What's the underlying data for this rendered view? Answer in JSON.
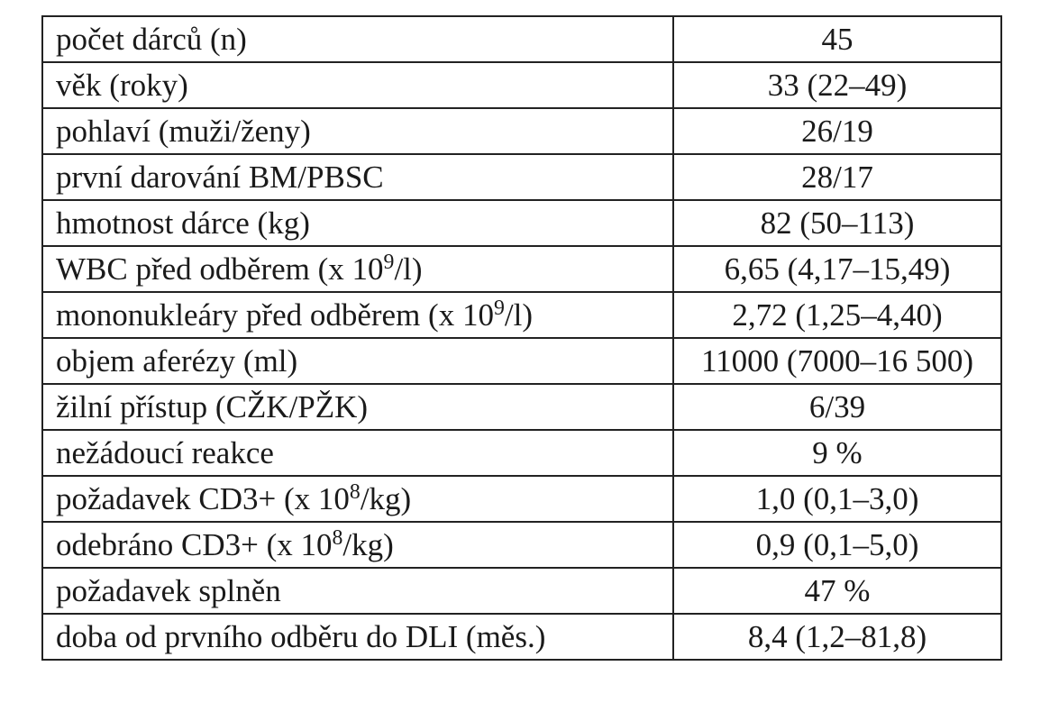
{
  "table": {
    "rows": [
      {
        "label": "počet dárců (n)",
        "value": "45"
      },
      {
        "label": "věk (roky)",
        "value": "33 (22–49)"
      },
      {
        "label": "pohlaví (muži/ženy)",
        "value": "26/19"
      },
      {
        "label": "první darování BM/PBSC",
        "value": "28/17"
      },
      {
        "label": "hmotnost dárce (kg)",
        "value": "82 (50–113)"
      },
      {
        "label_pre": "WBC před odběrem (x 10",
        "label_sup": "9",
        "label_post": "/l)",
        "value": "6,65 (4,17–15,49)"
      },
      {
        "label_pre": "mononukleáry před odběrem (x 10",
        "label_sup": "9",
        "label_post": "/l)",
        "value": "2,72 (1,25–4,40)"
      },
      {
        "label": "objem aferézy (ml)",
        "value": "11000 (7000–16 500)"
      },
      {
        "label": "žilní přístup (CŽK/PŽK)",
        "value": "6/39"
      },
      {
        "label": "nežádoucí reakce",
        "value": "9 %"
      },
      {
        "label_pre": "požadavek CD3+ (x 10",
        "label_sup": "8",
        "label_post": "/kg)",
        "value": "1,0 (0,1–3,0)"
      },
      {
        "label_pre": "odebráno CD3+ (x 10",
        "label_sup": "8",
        "label_post": "/kg)",
        "value": "0,9 (0,1–5,0)"
      },
      {
        "label": "požadavek splněn",
        "value": "47 %"
      },
      {
        "label": "doba od prvního odběru do DLI (měs.)",
        "value": "8,4 (1,2–81,8)"
      }
    ]
  }
}
